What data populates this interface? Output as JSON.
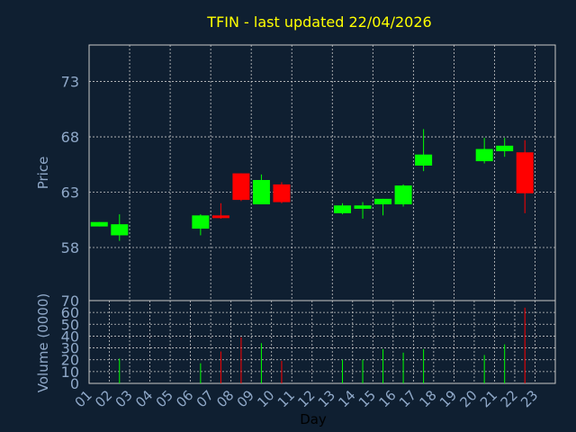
{
  "chart_data": {
    "type": "candlestick",
    "title": "TFIN - last updated 22/04/2026",
    "xlabel": "Day",
    "price_panel": {
      "ylabel": "Price",
      "yticks": [
        58,
        63,
        68,
        73
      ],
      "ylim": [
        53.2,
        76.3
      ],
      "grid": true
    },
    "volume_panel": {
      "ylabel": "Volume (0000)",
      "yticks": [
        0,
        10,
        20,
        30,
        40,
        50,
        60,
        70
      ],
      "ylim": [
        0,
        70
      ],
      "grid": true
    },
    "days": [
      "01",
      "02",
      "03",
      "04",
      "05",
      "06",
      "07",
      "08",
      "09",
      "10",
      "11",
      "12",
      "13",
      "14",
      "15",
      "16",
      "17",
      "18",
      "19",
      "20",
      "21",
      "22",
      "23"
    ],
    "candles": [
      {
        "day": "01",
        "open": 59.9,
        "high": 60.3,
        "low": 59.9,
        "close": 60.3,
        "volume": 0
      },
      {
        "day": "02",
        "open": 59.1,
        "high": 61.0,
        "low": 58.6,
        "close": 60.1,
        "volume": 21
      },
      {
        "day": "06",
        "open": 59.7,
        "high": 61.0,
        "low": 59.1,
        "close": 60.9,
        "volume": 17
      },
      {
        "day": "07",
        "open": 60.9,
        "high": 62.0,
        "low": 60.6,
        "close": 60.7,
        "volume": 27
      },
      {
        "day": "08",
        "open": 64.7,
        "high": 64.7,
        "low": 62.2,
        "close": 62.3,
        "volume": 39
      },
      {
        "day": "09",
        "open": 61.9,
        "high": 64.6,
        "low": 61.9,
        "close": 64.1,
        "volume": 34
      },
      {
        "day": "10",
        "open": 63.7,
        "high": 63.9,
        "low": 62.0,
        "close": 62.1,
        "volume": 19
      },
      {
        "day": "13",
        "open": 61.1,
        "high": 62.0,
        "low": 61.0,
        "close": 61.8,
        "volume": 20
      },
      {
        "day": "14",
        "open": 61.5,
        "high": 62.1,
        "low": 60.6,
        "close": 61.8,
        "volume": 20
      },
      {
        "day": "15",
        "open": 61.9,
        "high": 62.4,
        "low": 60.9,
        "close": 62.4,
        "volume": 29
      },
      {
        "day": "16",
        "open": 61.9,
        "high": 63.7,
        "low": 61.7,
        "close": 63.6,
        "volume": 26
      },
      {
        "day": "17",
        "open": 65.4,
        "high": 68.7,
        "low": 64.9,
        "close": 66.4,
        "volume": 29
      },
      {
        "day": "20",
        "open": 65.8,
        "high": 67.9,
        "low": 65.6,
        "close": 66.9,
        "volume": 24
      },
      {
        "day": "21",
        "open": 66.7,
        "high": 67.9,
        "low": 66.2,
        "close": 67.2,
        "volume": 33
      },
      {
        "day": "22",
        "open": 66.6,
        "high": 67.7,
        "low": 61.1,
        "close": 62.9,
        "volume": 64
      }
    ],
    "colors": {
      "background": "#0f1f31",
      "up": "#00ff00",
      "down": "#ff0000",
      "grid": "#c8c8c8",
      "axis": "#c8c8c8",
      "text": "#8fa8c8",
      "title": "#ffff00"
    }
  }
}
